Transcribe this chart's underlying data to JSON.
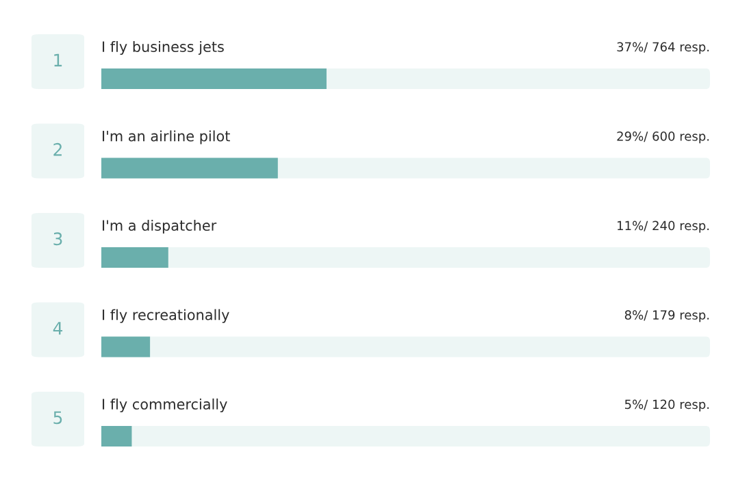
{
  "chart_data": {
    "type": "bar",
    "orientation": "horizontal",
    "categories": [
      "I fly business jets",
      "I'm an airline pilot",
      "I'm a dispatcher",
      "I fly recreationally",
      "I fly commercially"
    ],
    "values": [
      37,
      29,
      11,
      8,
      5
    ],
    "value_labels": [
      "37%/ 764 resp.",
      "29%/ 600 resp.",
      "11%/ 240 resp.",
      "8%/ 179 resp.",
      "5%/ 120 resp."
    ],
    "color": "#6aafac",
    "xlim": [
      0,
      100
    ],
    "tick_labels": false,
    "annotations": [
      "1",
      "2",
      "3",
      "4",
      "5"
    ]
  }
}
